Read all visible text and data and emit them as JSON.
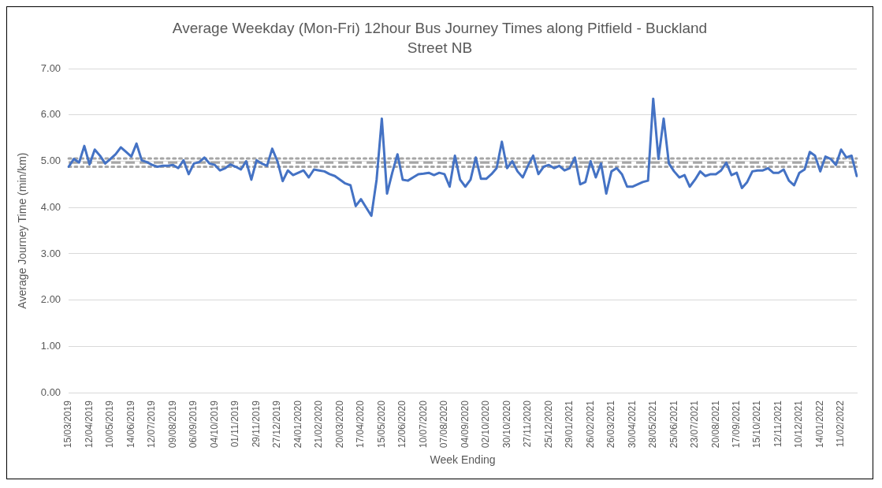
{
  "chart_data": {
    "type": "line",
    "title": "Average Weekday (Mon-Fri) 12hour Bus Journey Times along Pitfield - Buckland Street NB",
    "xlabel": "Week Ending",
    "ylabel": "Average Journey Time (min/km)",
    "categories": [
      "15/03/2019",
      null,
      null,
      null,
      "12/04/2019",
      null,
      null,
      null,
      "10/05/2019",
      null,
      null,
      null,
      "14/06/2019",
      null,
      null,
      null,
      "12/07/2019",
      null,
      null,
      null,
      "09/08/2019",
      null,
      null,
      null,
      "06/09/2019",
      null,
      null,
      null,
      "04/10/2019",
      null,
      null,
      null,
      "01/11/2019",
      null,
      null,
      null,
      "29/11/2019",
      null,
      null,
      null,
      "27/12/2019",
      null,
      null,
      null,
      "24/01/2020",
      null,
      null,
      null,
      "21/02/2020",
      null,
      null,
      null,
      "20/03/2020",
      null,
      null,
      null,
      "17/04/2020",
      null,
      null,
      null,
      "15/05/2020",
      null,
      null,
      null,
      "12/06/2020",
      null,
      null,
      null,
      "10/07/2020",
      null,
      null,
      null,
      "07/08/2020",
      null,
      null,
      null,
      "04/09/2020",
      null,
      null,
      null,
      "02/10/2020",
      null,
      null,
      null,
      "30/10/2020",
      null,
      null,
      null,
      "27/11/2020",
      null,
      null,
      null,
      "25/12/2020",
      null,
      null,
      null,
      "29/01/2021",
      null,
      null,
      null,
      "26/02/2021",
      null,
      null,
      null,
      "26/03/2021",
      null,
      null,
      null,
      "30/04/2021",
      null,
      null,
      null,
      "28/05/2021",
      null,
      null,
      null,
      "25/06/2021",
      null,
      null,
      null,
      "23/07/2021",
      null,
      null,
      null,
      "20/08/2021",
      null,
      null,
      null,
      "17/09/2021",
      null,
      null,
      null,
      "15/10/2021",
      null,
      null,
      null,
      "12/11/2021",
      null,
      null,
      null,
      "10/12/2021",
      null,
      null,
      null,
      "14/01/2022",
      null,
      null,
      null,
      "11/02/2022",
      null,
      null,
      null
    ],
    "series": [
      {
        "color": "#4472c4",
        "values": [
          4.88,
          5.05,
          4.97,
          5.33,
          4.93,
          5.25,
          5.12,
          4.95,
          5.05,
          5.15,
          5.3,
          5.2,
          5.1,
          5.38,
          5.02,
          4.98,
          4.92,
          4.88,
          4.9,
          4.9,
          4.92,
          4.85,
          5.02,
          4.72,
          4.95,
          4.98,
          5.08,
          4.95,
          4.92,
          4.8,
          4.85,
          4.93,
          4.88,
          4.82,
          5.0,
          4.6,
          5.02,
          4.95,
          4.9,
          5.27,
          5.0,
          4.57,
          4.8,
          4.7,
          4.75,
          4.8,
          4.65,
          4.82,
          4.8,
          4.78,
          4.72,
          4.68,
          4.6,
          4.52,
          4.48,
          4.03,
          4.18,
          4.0,
          3.82,
          4.6,
          5.92,
          4.3,
          4.75,
          5.15,
          4.6,
          4.58,
          4.65,
          4.72,
          4.73,
          4.75,
          4.7,
          4.75,
          4.72,
          4.45,
          5.12,
          4.6,
          4.45,
          4.6,
          5.08,
          4.62,
          4.62,
          4.72,
          4.85,
          5.42,
          4.85,
          5.0,
          4.78,
          4.65,
          4.9,
          5.12,
          4.72,
          4.88,
          4.92,
          4.85,
          4.9,
          4.8,
          4.85,
          5.08,
          4.5,
          4.55,
          5.0,
          4.65,
          4.95,
          4.3,
          4.78,
          4.85,
          4.72,
          4.45,
          4.45,
          4.5,
          4.55,
          4.58,
          6.35,
          5.05,
          5.92,
          4.95,
          4.78,
          4.65,
          4.7,
          4.45,
          4.6,
          4.78,
          4.68,
          4.72,
          4.72,
          4.8,
          4.97,
          4.7,
          4.75,
          4.42,
          4.55,
          4.78,
          4.8,
          4.8,
          4.85,
          4.75,
          4.75,
          4.82,
          4.58,
          4.48,
          4.75,
          4.82,
          5.2,
          5.12,
          4.78,
          5.1,
          5.05,
          4.92,
          5.25,
          5.08,
          5.12,
          4.68
        ]
      }
    ],
    "ylim": [
      0,
      7
    ],
    "yticks": [
      {
        "value": 0,
        "label": "0.00"
      },
      {
        "value": 1,
        "label": "1.00"
      },
      {
        "value": 2,
        "label": "2.00"
      },
      {
        "value": 3,
        "label": "3.00"
      },
      {
        "value": 4,
        "label": "4.00"
      },
      {
        "value": 5,
        "label": "5.00"
      },
      {
        "value": 6,
        "label": "6.00"
      },
      {
        "value": 7,
        "label": "7.00"
      }
    ],
    "grid": "y",
    "legend": false,
    "marker": "none",
    "line_style": "solid",
    "ref_lines": [
      {
        "axis": "y",
        "value": 4.97,
        "color": "#a6a6a6",
        "line_style": "dashed"
      },
      {
        "axis": "y",
        "value": 5.06,
        "color": "#a6a6a6",
        "line_style": "dotted"
      },
      {
        "axis": "y",
        "value": 4.88,
        "color": "#a6a6a6",
        "line_style": "dotted"
      }
    ]
  }
}
